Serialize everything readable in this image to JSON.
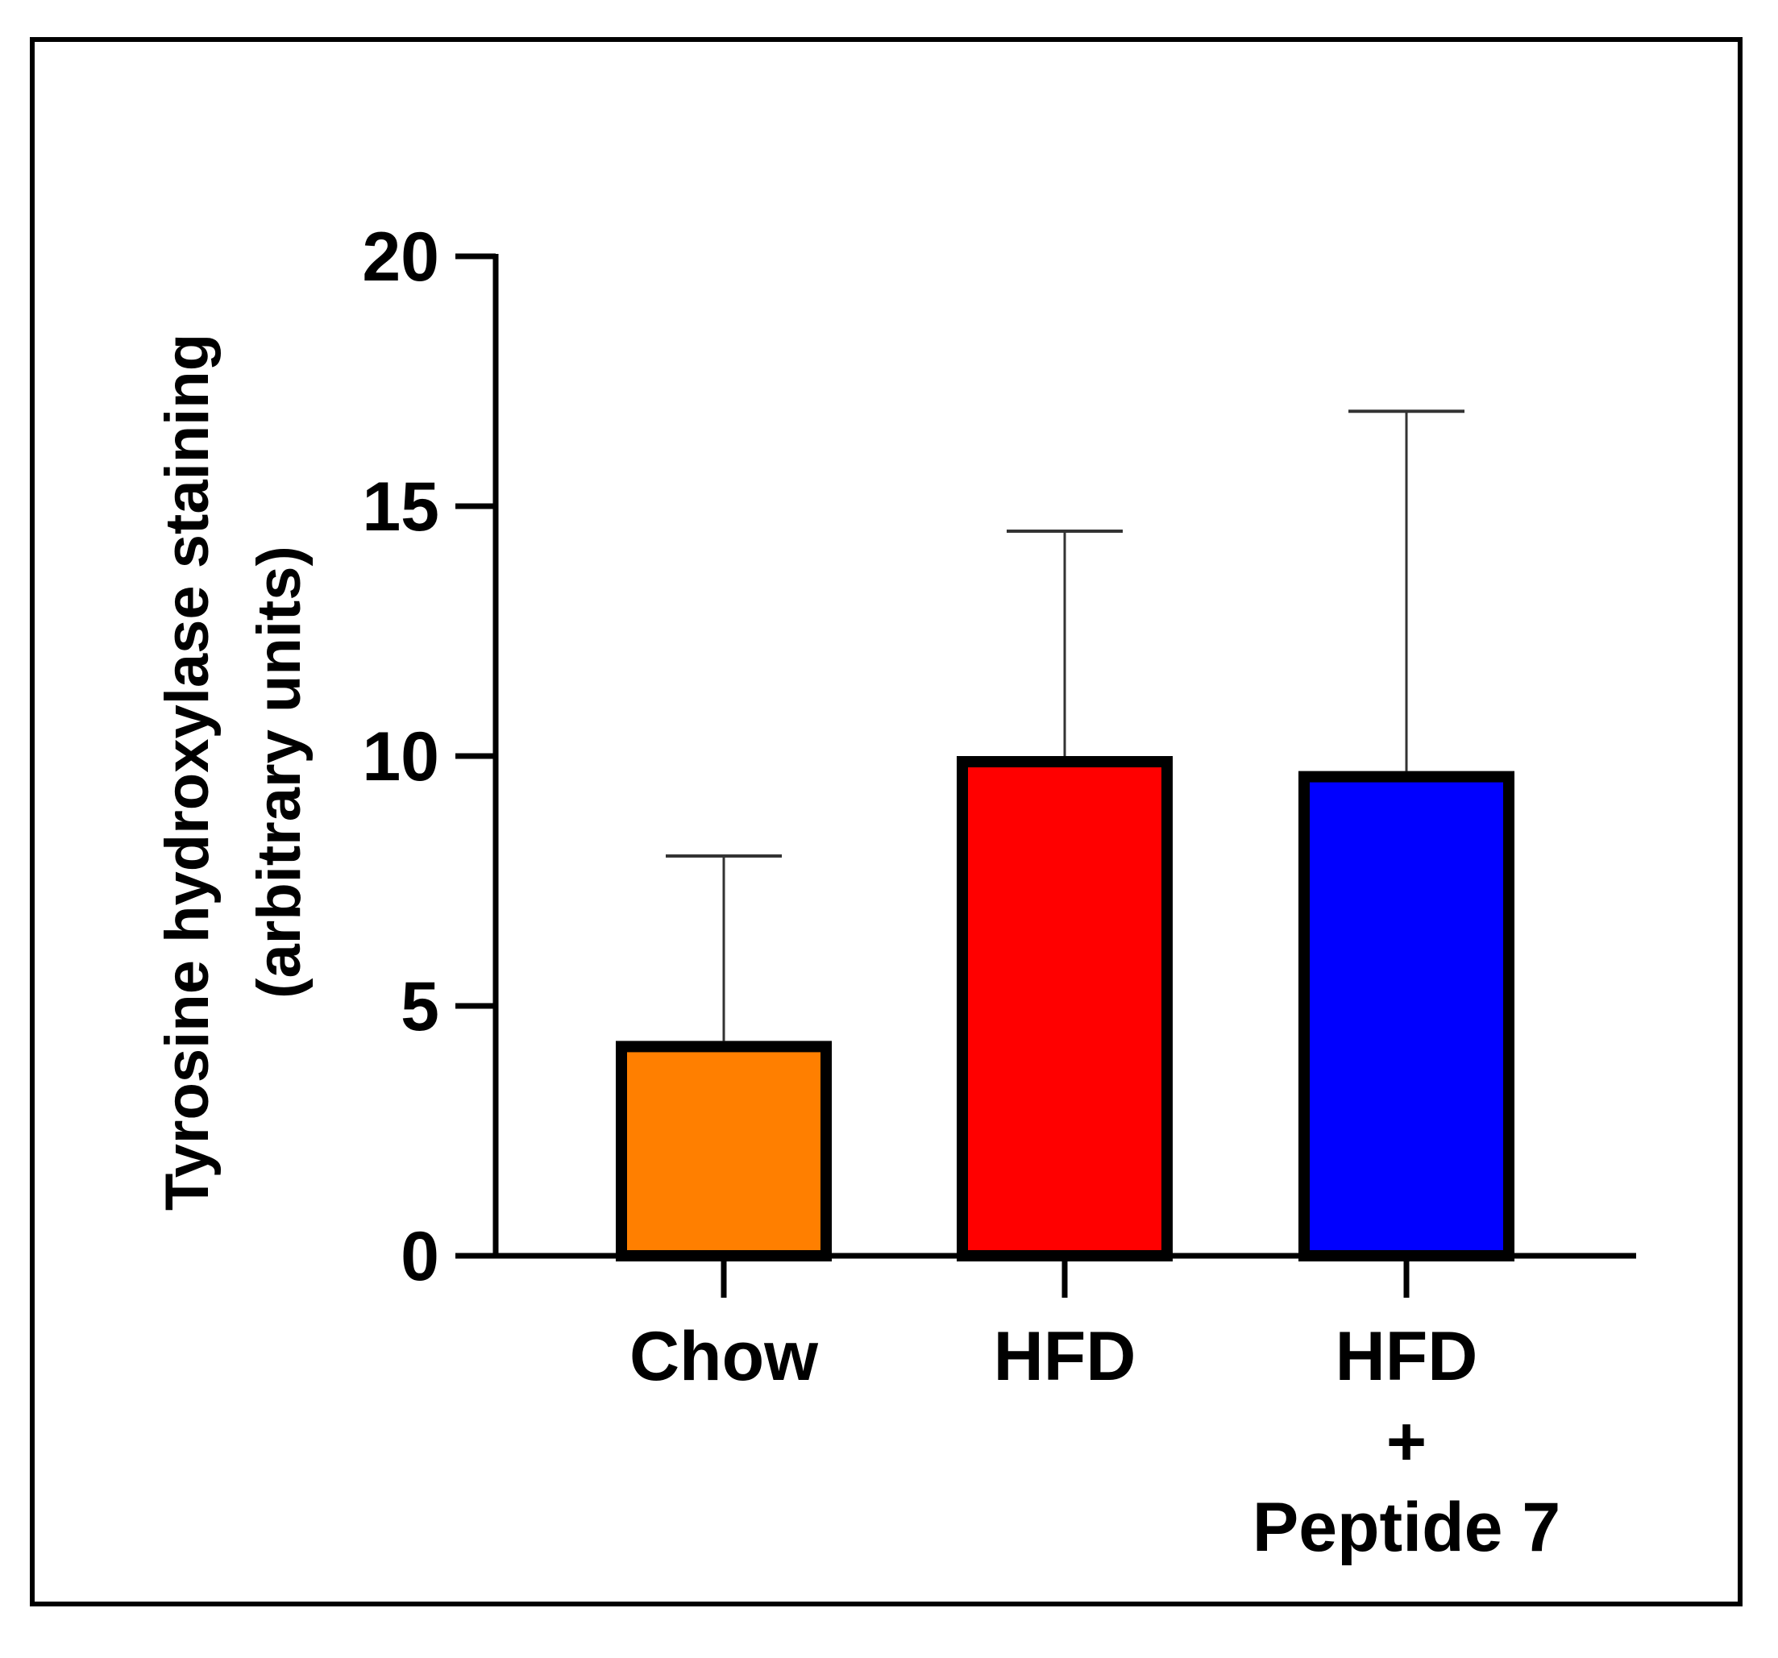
{
  "chart_data": {
    "type": "bar",
    "title": "",
    "xlabel": "",
    "ylabel_lines": [
      "Tyrosine hydroxylase staining",
      "(arbitrary units)"
    ],
    "ylim": [
      0,
      20
    ],
    "yticks": [
      0,
      5,
      10,
      15,
      20
    ],
    "categories": [
      {
        "lines": [
          "Chow"
        ]
      },
      {
        "lines": [
          "HFD"
        ]
      },
      {
        "lines": [
          "HFD",
          "+",
          "Peptide 7"
        ]
      }
    ],
    "values": [
      4.3,
      10.0,
      9.7
    ],
    "error_upper": [
      8.0,
      14.5,
      16.9
    ],
    "colors": [
      "#ff7f00",
      "#ff0000",
      "#0000ff"
    ],
    "grid": false
  }
}
